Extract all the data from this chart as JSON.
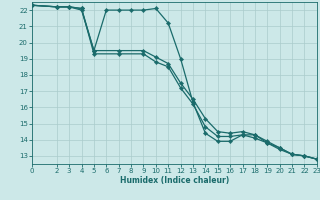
{
  "bg_color": "#cce8e8",
  "grid_color": "#aacccc",
  "line_color": "#1a6b6b",
  "xlabel": "Humidex (Indice chaleur)",
  "xlim": [
    0,
    23
  ],
  "ylim": [
    12.5,
    22.5
  ],
  "yticks": [
    13,
    14,
    15,
    16,
    17,
    18,
    19,
    20,
    21,
    22
  ],
  "xticks": [
    0,
    2,
    3,
    4,
    5,
    6,
    7,
    8,
    9,
    10,
    11,
    12,
    13,
    14,
    15,
    16,
    17,
    18,
    19,
    20,
    21,
    22,
    23
  ],
  "line1_x": [
    0,
    2,
    3,
    4,
    5,
    6,
    7,
    8,
    9,
    10,
    11,
    12,
    13,
    14,
    15,
    16,
    17,
    18,
    19,
    20,
    21,
    22,
    23
  ],
  "line1_y": [
    22.3,
    22.2,
    22.2,
    22.1,
    19.5,
    22.0,
    22.0,
    22.0,
    22.0,
    22.1,
    21.2,
    19.0,
    16.3,
    14.4,
    13.9,
    13.9,
    14.3,
    14.3,
    13.8,
    13.5,
    13.1,
    13.0,
    12.8
  ],
  "line2_x": [
    0,
    2,
    3,
    4,
    5,
    7,
    9,
    10,
    11,
    12,
    13,
    14,
    15,
    16,
    17,
    18,
    19,
    20,
    21,
    22,
    23
  ],
  "line2_y": [
    22.3,
    22.2,
    22.2,
    22.1,
    19.3,
    19.3,
    19.3,
    18.8,
    18.5,
    17.2,
    16.2,
    14.8,
    14.2,
    14.2,
    14.3,
    14.1,
    13.8,
    13.4,
    13.1,
    13.0,
    12.8
  ],
  "line3_x": [
    0,
    2,
    3,
    4,
    5,
    7,
    9,
    10,
    11,
    12,
    13,
    14,
    15,
    16,
    17,
    18,
    19,
    20,
    21,
    22,
    23
  ],
  "line3_y": [
    22.3,
    22.2,
    22.2,
    22.0,
    19.5,
    19.5,
    19.5,
    19.1,
    18.7,
    17.5,
    16.5,
    15.3,
    14.5,
    14.4,
    14.5,
    14.3,
    13.9,
    13.5,
    13.1,
    13.0,
    12.8
  ]
}
